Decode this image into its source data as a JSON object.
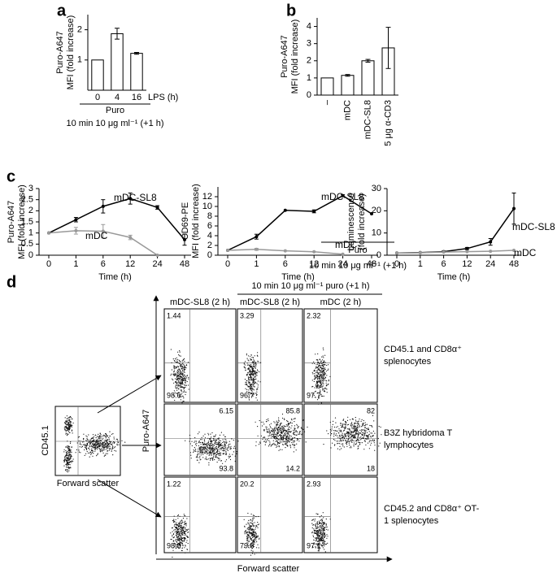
{
  "chart_data": [
    {
      "type": "bar",
      "panel": "a",
      "ylabel": [
        "Puro-A647",
        "MFI (fold increase)"
      ],
      "xlabel": "LPS (h)",
      "footer": [
        "Puro",
        "10 min 10 μg ml⁻¹ (+1 h)"
      ],
      "categories": [
        "0",
        "4",
        "16"
      ],
      "values": [
        1,
        1.87,
        1.22
      ],
      "error": [
        0,
        0.18,
        0.03
      ],
      "color": "#ffffff",
      "ylim": [
        0,
        2.5
      ],
      "yticks": [
        1,
        2
      ]
    },
    {
      "type": "bar",
      "panel": "b",
      "ylabel": [
        "Puro-A647",
        "MFI (fold increase)"
      ],
      "footer": [
        "Puro",
        "10 min 10 μg ml⁻¹ (+1 h)"
      ],
      "categories": [
        "–",
        "mDC",
        "mDC-SL8",
        "5 μg α-CD3"
      ],
      "values": [
        1,
        1.15,
        2.0,
        2.75
      ],
      "error": [
        0,
        0.05,
        0.08,
        1.2
      ],
      "color": "#ffffff",
      "ylim": [
        0,
        4.5
      ],
      "yticks": [
        0,
        1,
        2,
        3,
        4
      ]
    },
    {
      "type": "line",
      "panel": "c",
      "ylabel": [
        "Puro-A647",
        "MFI (fold increase)"
      ],
      "xlabel": "Time (h)",
      "categories": [
        "0",
        "1",
        "6",
        "12",
        "24",
        "48"
      ],
      "series": [
        {
          "name": "mDC-SL8",
          "color": "#000000",
          "values": [
            1,
            1.6,
            2.2,
            2.55,
            2.15,
            0.7
          ],
          "error": [
            0,
            0.1,
            0.3,
            0.25,
            0.08,
            0.25
          ]
        },
        {
          "name": "mDC",
          "color": "#999999",
          "values": [
            1,
            1.1,
            1.08,
            0.8,
            0,
            null
          ],
          "error": [
            0,
            0.15,
            0.3,
            0.1,
            0,
            null
          ]
        }
      ],
      "ylim": [
        0,
        3
      ],
      "yticks": [
        0,
        0.5,
        1,
        1.5,
        2,
        2.5,
        3
      ]
    },
    {
      "type": "line",
      "ylabel": [
        "CD69-PE",
        "MFI (fold increase)"
      ],
      "xlabel": "Time (h)",
      "categories": [
        "0",
        "1",
        "6",
        "12",
        "24",
        "48"
      ],
      "series": [
        {
          "name": "mDC-SL8",
          "color": "#000000",
          "values": [
            1,
            3.8,
            9.2,
            9,
            12.2,
            8.5
          ],
          "error": [
            0,
            0.5,
            0,
            0.3,
            0.2,
            0
          ]
        },
        {
          "name": "mDC",
          "color": "#999999",
          "values": [
            1,
            1.2,
            0.9,
            0.7,
            0.2,
            null
          ],
          "error": [
            0,
            0.2,
            0,
            0,
            0,
            null
          ]
        }
      ],
      "ylim": [
        0,
        14
      ],
      "yticks": [
        0,
        2,
        4,
        6,
        8,
        10,
        12
      ]
    },
    {
      "type": "line",
      "ylabel": [
        "Luminescence",
        "(fold increase)"
      ],
      "xlabel": "Time (h)",
      "categories": [
        "0",
        "1",
        "6",
        "12",
        "24",
        "48"
      ],
      "series": [
        {
          "name": "mDC-SL8",
          "color": "#000000",
          "values": [
            1,
            1.2,
            1.6,
            3,
            6,
            21
          ],
          "error": [
            0,
            0,
            0.3,
            0.5,
            1.5,
            7
          ]
        },
        {
          "name": "mDC",
          "color": "#999999",
          "values": [
            1,
            1.1,
            1.4,
            1.6,
            1.8,
            2.2
          ],
          "error": [
            0,
            0,
            0,
            0,
            0,
            0
          ]
        }
      ],
      "ylim": [
        0,
        30
      ],
      "yticks": [
        0,
        10,
        20,
        30
      ]
    }
  ],
  "flow": {
    "panel": "d",
    "header": "10 min 10 μg ml⁻¹ puro (+1 h)",
    "columns": [
      "mDC-SL8 (2 h)",
      "mDC-SL8 (2 h)",
      "mDC (2 h)"
    ],
    "rows": [
      "CD45.1 and CD8α⁺ splenocytes",
      "B3Z hybridoma T lymphocytes",
      "CD45.2 and CD8α⁺ OT-1 splenocytes"
    ],
    "cells": [
      [
        [
          "1.44",
          "98.6"
        ],
        [
          "3.29",
          "96.7"
        ],
        [
          "2.32",
          "97.7"
        ]
      ],
      [
        [
          "6.15",
          "93.8"
        ],
        [
          "85.8",
          "14.2"
        ],
        [
          "82",
          "18"
        ]
      ],
      [
        [
          "1.22",
          "98.8"
        ],
        [
          "20.2",
          "79.8"
        ],
        [
          "2.93",
          "97.1"
        ]
      ]
    ],
    "y_label": "Puro-A647",
    "x_label": "Forward scatter",
    "gate": {
      "y_label": "CD45.1",
      "x_label": "Forward scatter"
    }
  }
}
